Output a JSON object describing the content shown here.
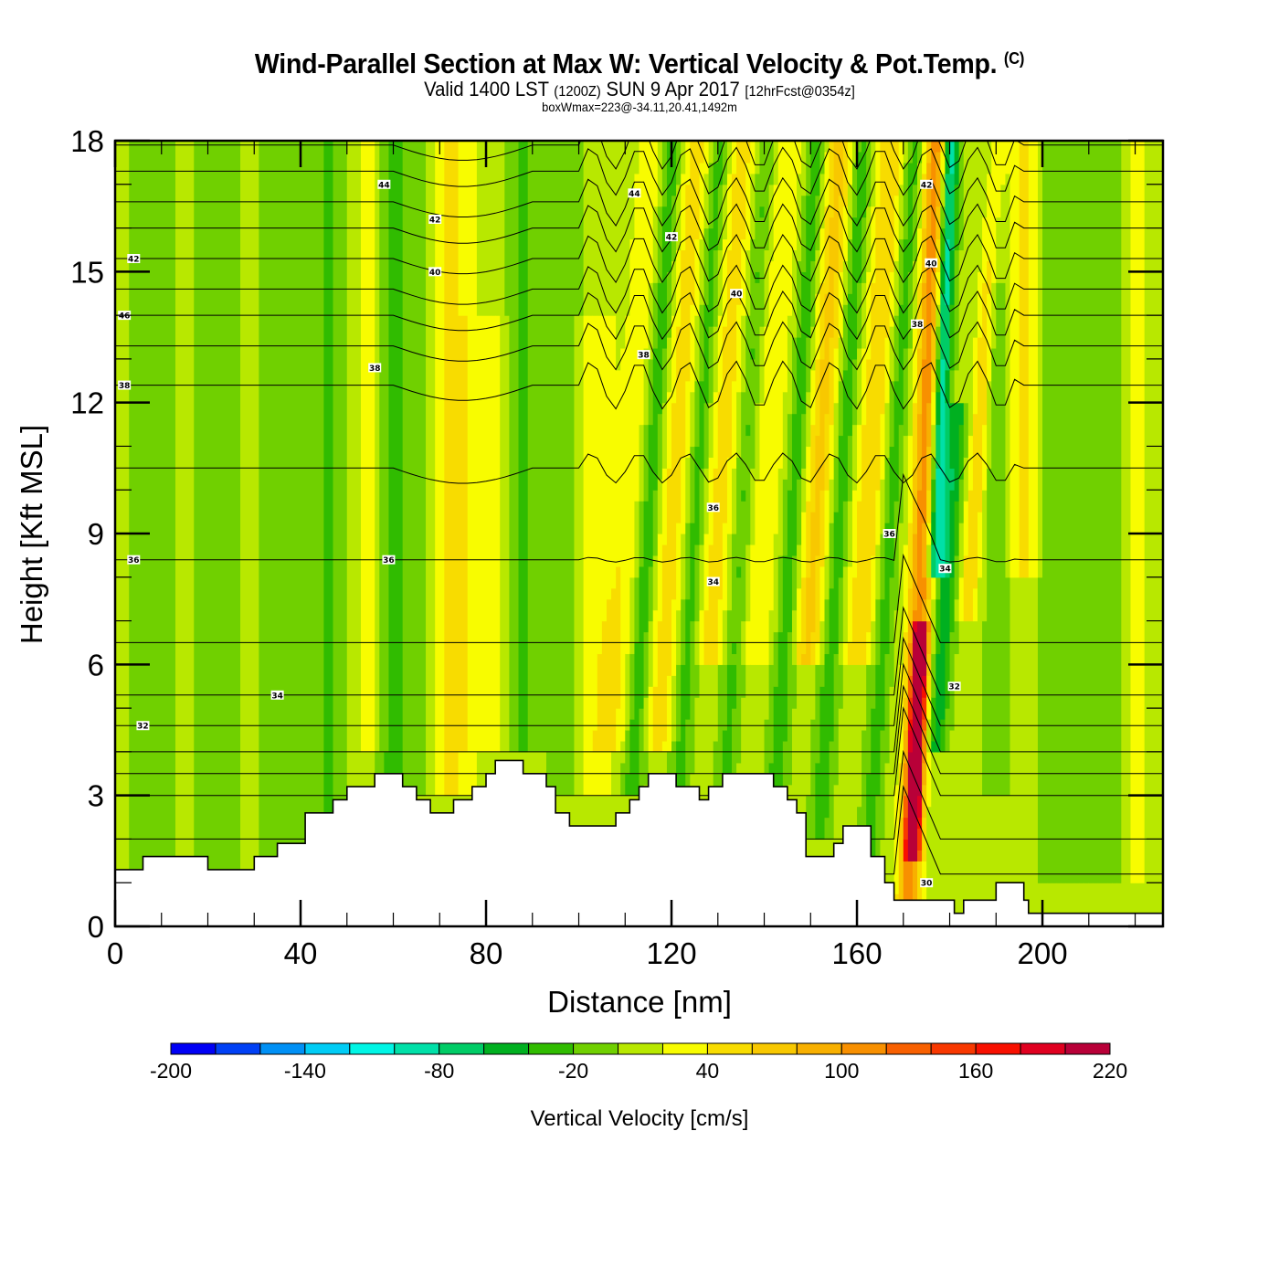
{
  "header": {
    "title": "Wind-Parallel Section at Max W: Vertical Velocity & Pot.Temp.",
    "title_mark": "(C)",
    "subtitle_a": "Valid 1400 LST",
    "subtitle_b": "(1200Z)",
    "subtitle_c": "SUN 9 Apr 2017",
    "subtitle_d": "[12hrFcst@0354z]",
    "subtitle2": "boxWmax=223@-34.11,20.41,1492m"
  },
  "chart_data": {
    "type": "heatmap",
    "title": "Wind-Parallel Section at Max W: Vertical Velocity & Pot.Temp.",
    "xlabel": "Distance [nm]",
    "ylabel": "Height [Kft MSL]",
    "xlim": [
      0,
      226
    ],
    "ylim": [
      0,
      18
    ],
    "x_ticks": [
      0,
      40,
      80,
      120,
      160,
      200
    ],
    "x_minor_step": 10,
    "y_ticks": [
      0,
      3,
      6,
      9,
      12,
      15,
      18
    ],
    "y_minor_step": 1,
    "colorbar": {
      "title": "Vertical Velocity [cm/s]",
      "levels": [
        -200,
        -180,
        -160,
        -140,
        -120,
        -100,
        -80,
        -60,
        -40,
        -20,
        0,
        20,
        40,
        60,
        80,
        100,
        120,
        140,
        160,
        180,
        200,
        220
      ],
      "tick_labels": [
        "-200",
        "-140",
        "-80",
        "-20",
        "40",
        "100",
        "160",
        "220"
      ],
      "colors": [
        "#0000f5",
        "#0040f5",
        "#0090f5",
        "#00ccf5",
        "#00f5e5",
        "#00e0a8",
        "#00cc66",
        "#00b020",
        "#30bc00",
        "#70d000",
        "#b8e800",
        "#f8fc00",
        "#f8dc00",
        "#f8c800",
        "#f8b000",
        "#f89000",
        "#f86000",
        "#f83800",
        "#f81000",
        "#e00020",
        "#b80038"
      ]
    },
    "wmax": 223,
    "contour_field": "Potential Temperature",
    "contour_labels": [
      {
        "value": "46",
        "x": 2,
        "y": 14.0
      },
      {
        "value": "42",
        "x": 4,
        "y": 15.3
      },
      {
        "value": "38",
        "x": 2,
        "y": 12.4
      },
      {
        "value": "36",
        "x": 4,
        "y": 8.4
      },
      {
        "value": "32",
        "x": 6,
        "y": 4.6
      },
      {
        "value": "34",
        "x": 35,
        "y": 5.3
      },
      {
        "value": "44",
        "x": 58,
        "y": 17.0
      },
      {
        "value": "42",
        "x": 69,
        "y": 16.2
      },
      {
        "value": "40",
        "x": 69,
        "y": 15.0
      },
      {
        "value": "38",
        "x": 56,
        "y": 12.8
      },
      {
        "value": "36",
        "x": 59,
        "y": 8.4
      },
      {
        "value": "44",
        "x": 112,
        "y": 16.8
      },
      {
        "value": "42",
        "x": 120,
        "y": 15.8
      },
      {
        "value": "40",
        "x": 134,
        "y": 14.5
      },
      {
        "value": "38",
        "x": 114,
        "y": 13.1
      },
      {
        "value": "36",
        "x": 129,
        "y": 9.6
      },
      {
        "value": "34",
        "x": 129,
        "y": 7.9
      },
      {
        "value": "36",
        "x": 167,
        "y": 9.0
      },
      {
        "value": "42",
        "x": 175,
        "y": 17.0
      },
      {
        "value": "40",
        "x": 176,
        "y": 15.2
      },
      {
        "value": "38",
        "x": 173,
        "y": 13.8
      },
      {
        "value": "34",
        "x": 179,
        "y": 8.2
      },
      {
        "value": "32",
        "x": 181,
        "y": 5.5
      },
      {
        "value": "30",
        "x": 175,
        "y": 1.0
      }
    ],
    "terrain_kft": [
      [
        0,
        1.3
      ],
      [
        6,
        1.6
      ],
      [
        20,
        1.3
      ],
      [
        30,
        1.6
      ],
      [
        35,
        1.9
      ],
      [
        41,
        2.6
      ],
      [
        47,
        2.9
      ],
      [
        50,
        3.2
      ],
      [
        56,
        3.5
      ],
      [
        62,
        3.2
      ],
      [
        65,
        2.9
      ],
      [
        68,
        2.6
      ],
      [
        73,
        2.9
      ],
      [
        77,
        3.2
      ],
      [
        80,
        3.5
      ],
      [
        82,
        3.8
      ],
      [
        88,
        3.5
      ],
      [
        93,
        3.2
      ],
      [
        95,
        2.6
      ],
      [
        98,
        2.3
      ],
      [
        108,
        2.6
      ],
      [
        111,
        2.9
      ],
      [
        113,
        3.2
      ],
      [
        115,
        3.5
      ],
      [
        121,
        3.2
      ],
      [
        126,
        2.9
      ],
      [
        128,
        3.2
      ],
      [
        131,
        3.5
      ],
      [
        142,
        3.2
      ],
      [
        145,
        2.9
      ],
      [
        147,
        2.6
      ],
      [
        149,
        1.6
      ],
      [
        155,
        1.9
      ],
      [
        157,
        2.3
      ],
      [
        163,
        1.6
      ],
      [
        166,
        1.0
      ],
      [
        168,
        0.6
      ],
      [
        181,
        0.3
      ],
      [
        183,
        0.6
      ],
      [
        190,
        1.0
      ],
      [
        196,
        0.6
      ],
      [
        197,
        0.3
      ],
      [
        226,
        0.3
      ]
    ]
  }
}
